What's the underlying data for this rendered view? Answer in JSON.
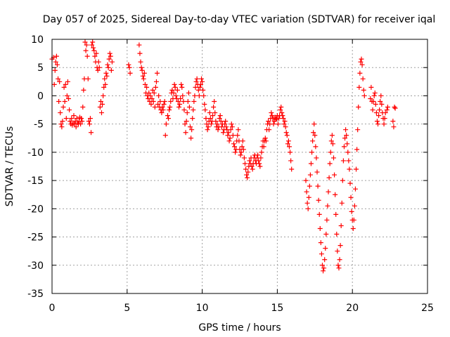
{
  "chart_data": {
    "type": "scatter",
    "title": "Day 057 of 2025, Sidereal Day-to-day VTEC variation (SDTVAR) for receiver iqal",
    "xlabel": "GPS time / hours",
    "ylabel": "SDTVAR / TECUs",
    "xlim": [
      0,
      25
    ],
    "ylim": [
      -35,
      10
    ],
    "xticks": [
      0,
      5,
      10,
      15,
      20,
      25
    ],
    "yticks": [
      10,
      5,
      0,
      -5,
      -10,
      -15,
      -20,
      -25,
      -30,
      -35
    ],
    "xtick_labels": [
      "0",
      "5",
      "10",
      "15",
      "20",
      "25"
    ],
    "ytick_labels": [
      "10",
      "5",
      "0",
      "-5",
      "-10",
      "-15",
      "-20",
      "-25",
      "-30",
      "-35"
    ],
    "grid": true,
    "marker": "+",
    "color": "#ff0000",
    "series": [
      {
        "name": "SDTVAR",
        "x": [
          0.0,
          0.1,
          0.15,
          0.2,
          0.25,
          0.3,
          0.35,
          0.4,
          0.45,
          0.5,
          0.55,
          0.6,
          0.65,
          0.7,
          0.75,
          0.8,
          0.85,
          0.9,
          0.95,
          1.0,
          1.05,
          1.1,
          1.15,
          1.2,
          1.25,
          1.3,
          1.35,
          1.4,
          1.45,
          1.5,
          1.55,
          1.6,
          1.65,
          1.7,
          1.75,
          1.8,
          1.85,
          1.9,
          1.95,
          2.0,
          2.05,
          2.1,
          2.15,
          2.2,
          2.25,
          2.3,
          2.35,
          2.4,
          2.45,
          2.5,
          2.55,
          2.6,
          2.65,
          2.7,
          2.75,
          2.8,
          2.85,
          2.9,
          2.95,
          3.0,
          3.05,
          3.1,
          3.15,
          3.2,
          3.25,
          3.3,
          3.35,
          3.4,
          3.45,
          3.5,
          3.55,
          3.6,
          3.65,
          3.7,
          3.75,
          3.8,
          3.85,
          3.9,
          3.95,
          4.0,
          5.1,
          5.15,
          5.2,
          5.8,
          5.85,
          5.9,
          5.95,
          6.0,
          6.05,
          6.1,
          6.15,
          6.2,
          6.25,
          6.3,
          6.35,
          6.4,
          6.45,
          6.5,
          6.55,
          6.6,
          6.65,
          6.7,
          6.75,
          6.8,
          6.85,
          6.9,
          6.95,
          7.0,
          7.05,
          7.1,
          7.15,
          7.2,
          7.25,
          7.3,
          7.35,
          7.4,
          7.45,
          7.5,
          7.55,
          7.6,
          7.7,
          7.75,
          7.8,
          7.85,
          7.9,
          7.95,
          8.0,
          8.05,
          8.1,
          8.15,
          8.2,
          8.25,
          8.3,
          8.35,
          8.4,
          8.45,
          8.5,
          8.55,
          8.6,
          8.65,
          8.7,
          8.75,
          8.8,
          8.85,
          8.9,
          8.95,
          9.0,
          9.05,
          9.1,
          9.15,
          9.2,
          9.25,
          9.3,
          9.35,
          9.4,
          9.45,
          9.5,
          9.55,
          9.6,
          9.65,
          9.7,
          9.75,
          9.8,
          9.85,
          9.9,
          9.95,
          10.0,
          10.05,
          10.1,
          10.15,
          10.2,
          10.25,
          10.3,
          10.35,
          10.4,
          10.45,
          10.5,
          10.55,
          10.6,
          10.65,
          10.7,
          10.75,
          10.8,
          10.85,
          10.9,
          10.95,
          11.0,
          11.05,
          11.1,
          11.15,
          11.2,
          11.25,
          11.3,
          11.35,
          11.4,
          11.45,
          11.5,
          11.55,
          11.6,
          11.65,
          11.7,
          11.75,
          11.8,
          11.85,
          11.9,
          11.95,
          12.0,
          12.05,
          12.1,
          12.15,
          12.2,
          12.25,
          12.3,
          12.35,
          12.4,
          12.45,
          12.5,
          12.55,
          12.6,
          12.65,
          12.7,
          12.75,
          12.8,
          12.85,
          12.9,
          12.95,
          13.0,
          13.05,
          13.1,
          13.15,
          13.2,
          13.25,
          13.3,
          13.35,
          13.4,
          13.45,
          13.5,
          13.55,
          13.6,
          13.65,
          13.7,
          13.75,
          13.8,
          13.85,
          13.9,
          13.95,
          14.0,
          14.05,
          14.1,
          14.15,
          14.2,
          14.25,
          14.3,
          14.35,
          14.4,
          14.45,
          14.5,
          14.55,
          14.6,
          14.65,
          14.7,
          14.75,
          14.8,
          14.85,
          14.9,
          14.95,
          15.0,
          15.05,
          15.1,
          15.15,
          15.2,
          15.25,
          15.3,
          15.35,
          15.4,
          15.45,
          15.5,
          15.55,
          15.6,
          15.65,
          15.7,
          15.75,
          15.8,
          15.85,
          15.9,
          15.95,
          16.9,
          16.95,
          17.0,
          17.05,
          17.1,
          17.15,
          17.2,
          17.25,
          17.3,
          17.35,
          17.4,
          17.45,
          17.5,
          17.55,
          17.6,
          17.65,
          17.7,
          17.75,
          17.8,
          17.85,
          17.9,
          17.95,
          18.0,
          18.05,
          18.1,
          18.15,
          18.2,
          18.25,
          18.3,
          18.35,
          18.4,
          18.45,
          18.5,
          18.55,
          18.6,
          18.65,
          18.7,
          18.75,
          18.8,
          18.85,
          18.9,
          18.95,
          19.0,
          19.05,
          19.1,
          19.15,
          19.2,
          19.25,
          19.3,
          19.35,
          19.4,
          19.45,
          19.5,
          19.55,
          19.6,
          19.65,
          19.7,
          19.75,
          19.8,
          19.85,
          19.9,
          19.95,
          20.0,
          20.05,
          20.1,
          20.15,
          20.2,
          20.25,
          20.3,
          20.35,
          20.4,
          20.45,
          20.5,
          20.55,
          20.6,
          20.65,
          20.7,
          20.75,
          20.8,
          21.2,
          21.25,
          21.3,
          21.35,
          21.4,
          21.45,
          21.5,
          21.55,
          21.6,
          21.65,
          21.7,
          21.75,
          21.8,
          21.85,
          21.9,
          21.95,
          22.0,
          22.05,
          22.1,
          22.15,
          22.2,
          22.3,
          22.35,
          22.7,
          22.75,
          22.8,
          22.85
        ],
        "y": [
          6.5,
          6.8,
          2.0,
          4.5,
          6.0,
          7.0,
          5.5,
          3.0,
          -1.0,
          2.5,
          -3.0,
          -5.0,
          -5.5,
          -4.5,
          -2.0,
          1.5,
          -1.0,
          2.0,
          -4.0,
          0.0,
          2.5,
          -0.5,
          -2.5,
          -4.5,
          -5.0,
          -4.0,
          -5.2,
          -4.8,
          -3.5,
          -5.0,
          -4.5,
          -5.5,
          -4.0,
          -4.8,
          -5.0,
          -4.5,
          -3.8,
          -5.0,
          -4.0,
          -4.5,
          -2.0,
          1.0,
          3.0,
          9.5,
          8.0,
          9.0,
          7.0,
          3.0,
          -4.5,
          -5.0,
          -4.0,
          -6.5,
          9.0,
          9.5,
          8.5,
          8.0,
          7.0,
          6.0,
          7.5,
          5.0,
          4.5,
          6.0,
          5.0,
          -2.0,
          -1.0,
          -3.0,
          -1.5,
          0.0,
          1.5,
          3.0,
          2.0,
          4.0,
          3.5,
          5.5,
          5.0,
          6.5,
          7.5,
          7.0,
          4.5,
          6.0,
          5.5,
          5.0,
          4.0,
          9.0,
          7.5,
          6.0,
          5.0,
          4.5,
          3.5,
          3.0,
          4.0,
          2.0,
          0.5,
          1.5,
          0.0,
          -0.5,
          0.5,
          -1.0,
          0.0,
          -1.5,
          -0.5,
          1.0,
          -1.0,
          0.5,
          -2.0,
          1.5,
          2.5,
          4.0,
          -1.5,
          0.0,
          -2.0,
          -1.0,
          -2.5,
          -3.0,
          -2.0,
          -2.5,
          -1.5,
          -1.0,
          -7.0,
          -5.0,
          -3.5,
          -4.0,
          -2.5,
          -2.0,
          -1.0,
          0.5,
          1.0,
          -0.5,
          0.5,
          2.0,
          1.5,
          0.0,
          -0.5,
          1.0,
          -1.0,
          -2.0,
          -1.5,
          -0.5,
          2.0,
          1.5,
          0.0,
          -1.0,
          -2.5,
          -5.0,
          -6.5,
          -4.5,
          -3.0,
          -1.0,
          0.5,
          -2.0,
          -5.5,
          -7.5,
          -6.0,
          -4.0,
          -2.5,
          -1.0,
          0.0,
          1.5,
          2.5,
          3.0,
          2.0,
          1.0,
          0.0,
          1.5,
          2.0,
          3.0,
          2.5,
          1.0,
          0.0,
          -1.5,
          -2.5,
          -4.0,
          -5.0,
          -6.0,
          -5.5,
          -4.5,
          -3.0,
          -4.0,
          -5.0,
          -4.5,
          -3.5,
          -2.0,
          -1.0,
          -3.0,
          -4.5,
          -5.5,
          -5.0,
          -6.0,
          -5.5,
          -4.0,
          -3.5,
          -4.5,
          -5.5,
          -5.0,
          -6.5,
          -6.0,
          -5.0,
          -4.5,
          -5.5,
          -6.0,
          -7.0,
          -6.5,
          -8.0,
          -7.5,
          -6.0,
          -5.0,
          -5.5,
          -7.0,
          -8.5,
          -9.0,
          -10.0,
          -9.5,
          -8.0,
          -7.0,
          -6.0,
          -8.0,
          -9.5,
          -10.5,
          -10.0,
          -9.0,
          -8.0,
          -9.5,
          -11.0,
          -12.0,
          -13.0,
          -14.0,
          -14.5,
          -13.5,
          -12.5,
          -11.5,
          -12.0,
          -11.0,
          -12.5,
          -13.0,
          -12.0,
          -11.0,
          -10.5,
          -11.5,
          -12.0,
          -11.0,
          -10.5,
          -11.5,
          -12.0,
          -12.5,
          -11.0,
          -10.0,
          -9.0,
          -8.0,
          -9.0,
          -8.0,
          -7.5,
          -8.0,
          -6.0,
          -5.0,
          -4.5,
          -6.0,
          -5.0,
          -4.0,
          -3.0,
          -3.5,
          -4.0,
          -5.0,
          -4.5,
          -3.8,
          -4.2,
          -4.0,
          -3.5,
          -5.0,
          -4.0,
          -3.5,
          -2.5,
          -2.0,
          -3.0,
          -3.5,
          -4.0,
          -5.0,
          -4.5,
          -5.5,
          -6.5,
          -7.0,
          -8.5,
          -8.0,
          -9.0,
          -10.0,
          -11.5,
          -13.0,
          -15.0,
          -17.0,
          -19.0,
          -20.0,
          -18.0,
          -16.0,
          -14.0,
          -12.0,
          -10.0,
          -8.0,
          -6.5,
          -5.0,
          -7.0,
          -9.0,
          -11.0,
          -13.5,
          -16.0,
          -18.5,
          -21.0,
          -23.5,
          -26.0,
          -28.0,
          -30.0,
          -31.0,
          -30.5,
          -29.0,
          -27.0,
          -24.5,
          -22.0,
          -19.5,
          -17.0,
          -14.5,
          -12.0,
          -10.0,
          -8.0,
          -7.0,
          -8.5,
          -11.0,
          -14.0,
          -17.5,
          -21.0,
          -24.5,
          -27.5,
          -30.0,
          -30.5,
          -29.0,
          -26.5,
          -23.0,
          -19.0,
          -15.0,
          -11.5,
          -9.0,
          -7.5,
          -6.0,
          -7.0,
          -8.5,
          -10.0,
          -11.5,
          -13.0,
          -15.5,
          -18.0,
          -20.5,
          -22.0,
          -23.5,
          -22.0,
          -19.5,
          -16.5,
          -13.0,
          -9.5,
          -6.0,
          -2.0,
          1.5,
          4.0,
          6.0,
          6.5,
          5.5,
          3.0,
          1.0,
          0.0,
          -0.5,
          1.5,
          -1.0,
          -2.5,
          -1.0,
          0.0,
          0.5,
          -1.5,
          -3.0,
          -4.5,
          -5.0,
          -3.5,
          -2.5,
          -1.0,
          0.0,
          -1.5,
          -3.0,
          -4.0,
          -5.0,
          -4.0,
          -3.0,
          -2.5,
          -2.0,
          -4.5,
          -5.5,
          -2.0,
          -2.2
        ]
      }
    ]
  }
}
